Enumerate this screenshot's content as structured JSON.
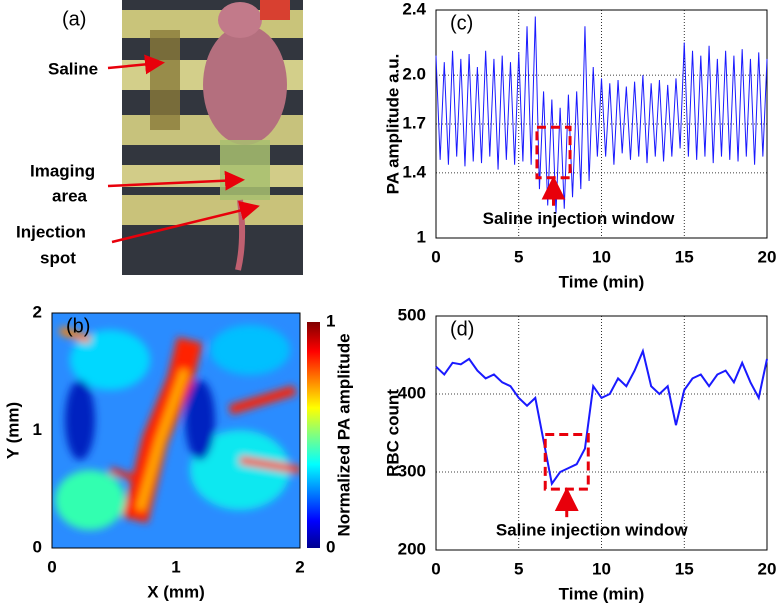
{
  "photo": {
    "panel": "(a)",
    "labels": [
      "Saline",
      "Imaging",
      "area",
      "Injection",
      "spot"
    ]
  },
  "chart_data": [
    {
      "type": "heatmap",
      "panel": "(b)",
      "xlabel": "X (mm)",
      "ylabel": "Y (mm)",
      "xlim": [
        0,
        2
      ],
      "xticks": [
        0,
        1,
        2
      ],
      "ylim": [
        0,
        2
      ],
      "yticks": [
        0,
        1,
        2
      ],
      "colorbar_label": "Normalized PA amplitude",
      "clim": [
        0,
        1
      ],
      "cticks": [
        0,
        1
      ],
      "grid": false
    },
    {
      "type": "line",
      "panel": "(c)",
      "xlabel": "Time (min)",
      "ylabel": "PA amplitude a.u.",
      "xlim": [
        0,
        20
      ],
      "xticks": [
        0,
        5,
        10,
        15,
        20
      ],
      "ylim": [
        1,
        2.4
      ],
      "yticks": [
        1,
        1.4,
        1.7,
        {
          "value": 2,
          "label": "2.0"
        },
        2.4
      ],
      "grid": true,
      "color": "#1a1aff",
      "x": [
        0,
        0.25,
        0.5,
        0.75,
        1,
        1.25,
        1.5,
        1.75,
        2,
        2.25,
        2.5,
        2.75,
        3,
        3.25,
        3.5,
        3.75,
        4,
        4.25,
        4.5,
        4.75,
        5,
        5.25,
        5.5,
        5.75,
        6,
        6.25,
        6.5,
        6.75,
        7,
        7.25,
        7.5,
        7.75,
        8,
        8.25,
        8.5,
        8.75,
        9,
        9.25,
        9.5,
        9.75,
        10,
        10.25,
        10.5,
        10.75,
        11,
        11.25,
        11.5,
        11.75,
        12,
        12.25,
        12.5,
        12.75,
        13,
        13.25,
        13.5,
        13.75,
        14,
        14.25,
        14.5,
        14.75,
        15,
        15.25,
        15.5,
        15.75,
        16,
        16.25,
        16.5,
        16.75,
        17,
        17.25,
        17.5,
        17.75,
        18,
        18.25,
        18.5,
        18.75,
        19,
        19.25,
        19.5,
        19.75,
        20
      ],
      "values": [
        2.12,
        1.48,
        2.08,
        1.45,
        2.15,
        1.5,
        2.1,
        1.44,
        2.13,
        1.47,
        2.05,
        1.46,
        2.15,
        1.5,
        2.1,
        1.42,
        2.12,
        1.48,
        2.08,
        1.45,
        2.14,
        1.47,
        2.3,
        1.45,
        2.36,
        1.3,
        1.9,
        1.2,
        1.85,
        1.15,
        1.8,
        1.18,
        1.88,
        1.25,
        1.9,
        1.3,
        2.3,
        1.35,
        2.05,
        1.5,
        1.98,
        1.5,
        1.95,
        1.45,
        1.97,
        1.52,
        1.93,
        1.48,
        1.96,
        1.5,
        2.0,
        1.46,
        1.95,
        1.5,
        1.97,
        1.47,
        1.94,
        1.5,
        1.98,
        1.55,
        2.2,
        1.5,
        2.15,
        1.48,
        2.12,
        1.5,
        2.18,
        1.46,
        2.1,
        1.5,
        2.15,
        1.48,
        2.12,
        1.47,
        2.16,
        1.5,
        2.1,
        1.45,
        2.14,
        1.5,
        2.1
      ],
      "window": {
        "xlim": [
          6.1,
          8.1
        ],
        "ylim": [
          1.37,
          1.68
        ]
      },
      "annotation": "Saline injection window"
    },
    {
      "type": "line",
      "panel": "(d)",
      "xlabel": "Time (min)",
      "ylabel": "RBC count",
      "xlim": [
        0,
        20
      ],
      "xticks": [
        0,
        5,
        10,
        15,
        20
      ],
      "ylim": [
        200,
        500
      ],
      "yticks": [
        200,
        300,
        400,
        500
      ],
      "grid": true,
      "color": "#1a1aff",
      "x": [
        0,
        0.5,
        1,
        1.5,
        2,
        2.5,
        3,
        3.5,
        4,
        4.5,
        5,
        5.5,
        6,
        6.5,
        7,
        7.5,
        8,
        8.5,
        9,
        9.5,
        10,
        10.5,
        11,
        11.5,
        12,
        12.5,
        13,
        13.5,
        14,
        14.5,
        15,
        15.5,
        16,
        16.5,
        17,
        17.5,
        18,
        18.5,
        19,
        19.5,
        20
      ],
      "values": [
        435,
        425,
        440,
        438,
        445,
        430,
        420,
        425,
        415,
        410,
        395,
        385,
        395,
        340,
        285,
        300,
        305,
        310,
        330,
        410,
        395,
        400,
        420,
        410,
        430,
        455,
        410,
        400,
        410,
        360,
        405,
        420,
        425,
        410,
        425,
        430,
        415,
        440,
        415,
        395,
        445
      ],
      "window": {
        "xlim": [
          6.6,
          9.2
        ],
        "ylim": [
          278,
          348
        ]
      },
      "annotation": "Saline injection window"
    }
  ]
}
